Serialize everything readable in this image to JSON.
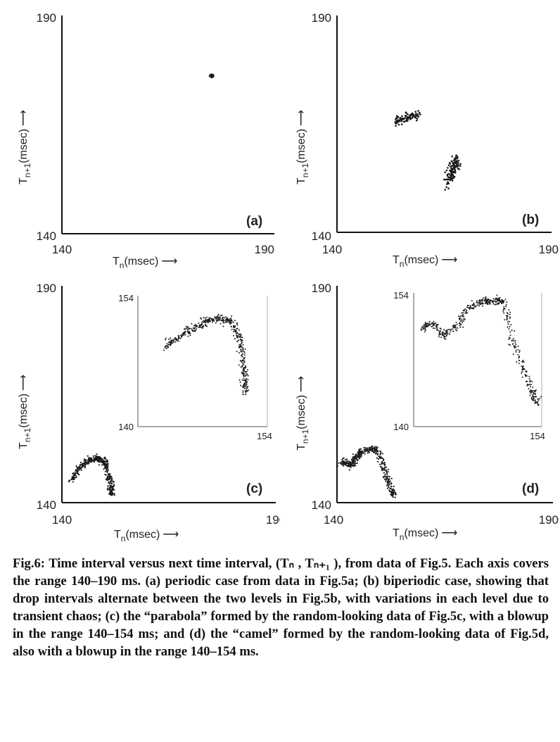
{
  "caption": "Fig.6: Time interval versus next time interval, (Tₙ , Tₙ₊₁ ), from data of Fig.5. Each axis covers the range 140–190 ms. (a) periodic case from data in Fig.5a; (b) biperiodic case, showing that drop intervals alternate between the two levels in Fig.5b, with variations in each level due to transient chaos; (c) the “parabola” formed by the random-looking data of Fig.5c, with a blowup in the range 140–154 ms; and (d) the “camel” formed by the random-looking data of Fig.5d, also with a blowup in the range 140–154 ms.",
  "chart_data": [
    {
      "type": "scatter",
      "panel_label": "(a)",
      "xlabel": "Tn(msec)",
      "ylabel": "Tn+1(msec)",
      "xlim": [
        140,
        190
      ],
      "ylim": [
        140,
        190
      ],
      "x_tick_labels": [
        "140",
        "190"
      ],
      "y_tick_labels": [
        "140",
        "190"
      ],
      "clusters": [
        {
          "cx": 175.3,
          "cy": 176.2,
          "sx": 0.25,
          "sy": 0.15,
          "n": 40
        }
      ]
    },
    {
      "type": "scatter",
      "panel_label": "(b)",
      "xlabel": "Tn(msec)",
      "ylabel": "Tn+1(msec)",
      "xlim": [
        140,
        190
      ],
      "ylim": [
        140,
        190
      ],
      "x_tick_labels": [
        "140",
        "190"
      ],
      "y_tick_labels": [
        "140",
        "190"
      ],
      "clusters": [
        {
          "x_range": [
            153.5,
            159.5
          ],
          "y_center": [
            165.6,
            167.2
          ],
          "sy": 0.55,
          "n": 90
        },
        {
          "x_range": [
            165.8,
            168.2
          ],
          "y_center": [
            152.0,
            156.4
          ],
          "sx": 0.5,
          "sy": 0.9,
          "n": 120
        }
      ]
    },
    {
      "type": "scatter",
      "panel_label": "(c)",
      "xlabel": "Tn(msec)",
      "ylabel": "Tn+1(msec)",
      "xlim": [
        140,
        190
      ],
      "ylim": [
        140,
        190
      ],
      "x_tick_labels": [
        "140",
        "190"
      ],
      "y_tick_labels": [
        "140",
        "190"
      ],
      "curve": [
        [
          142.2,
          145.2
        ],
        [
          144.0,
          147.8
        ],
        [
          146.0,
          149.6
        ],
        [
          148.0,
          150.2
        ],
        [
          149.5,
          150.0
        ],
        [
          150.5,
          148.0
        ],
        [
          151.3,
          144.5
        ],
        [
          151.6,
          141.6
        ]
      ],
      "inset": {
        "xlim": [
          140,
          154
        ],
        "ylim": [
          140,
          154
        ],
        "x_tick_labels": [
          "140",
          "154"
        ],
        "y_tick_labels": [
          "154",
          "140"
        ],
        "curve": [
          [
            143.0,
            148.5
          ],
          [
            144.5,
            149.6
          ],
          [
            146.0,
            150.6
          ],
          [
            147.5,
            151.3
          ],
          [
            148.8,
            151.6
          ],
          [
            150.0,
            151.3
          ],
          [
            150.8,
            150.0
          ],
          [
            151.3,
            148.0
          ],
          [
            151.5,
            145.5
          ],
          [
            151.6,
            143.6
          ]
        ]
      }
    },
    {
      "type": "scatter",
      "panel_label": "(d)",
      "xlabel": "Tn(msec)",
      "ylabel": "Tn+1(msec)",
      "xlim": [
        140,
        190
      ],
      "ylim": [
        140,
        190
      ],
      "x_tick_labels": [
        "140",
        "190"
      ],
      "y_tick_labels": [
        "140",
        "190"
      ],
      "curve": [
        [
          141.0,
          149.0
        ],
        [
          142.0,
          149.5
        ],
        [
          143.2,
          148.4
        ],
        [
          144.5,
          150.5
        ],
        [
          146.0,
          152.0
        ],
        [
          148.0,
          152.3
        ],
        [
          149.5,
          152.0
        ],
        [
          150.5,
          149.0
        ],
        [
          151.5,
          146.0
        ],
        [
          152.5,
          143.0
        ],
        [
          153.3,
          141.3
        ]
      ],
      "inset": {
        "xlim": [
          140,
          154
        ],
        "ylim": [
          140,
          154
        ],
        "x_tick_labels": [
          "140",
          "154"
        ],
        "y_tick_labels": [
          "154",
          "140"
        ],
        "curve": [
          [
            141.0,
            150.4
          ],
          [
            142.0,
            150.8
          ],
          [
            143.3,
            149.6
          ],
          [
            144.8,
            150.6
          ],
          [
            146.2,
            152.6
          ],
          [
            147.6,
            153.1
          ],
          [
            149.0,
            153.2
          ],
          [
            149.8,
            153.0
          ],
          [
            150.6,
            150.0
          ],
          [
            151.8,
            146.5
          ],
          [
            152.9,
            143.7
          ],
          [
            153.5,
            142.4
          ]
        ]
      }
    }
  ]
}
